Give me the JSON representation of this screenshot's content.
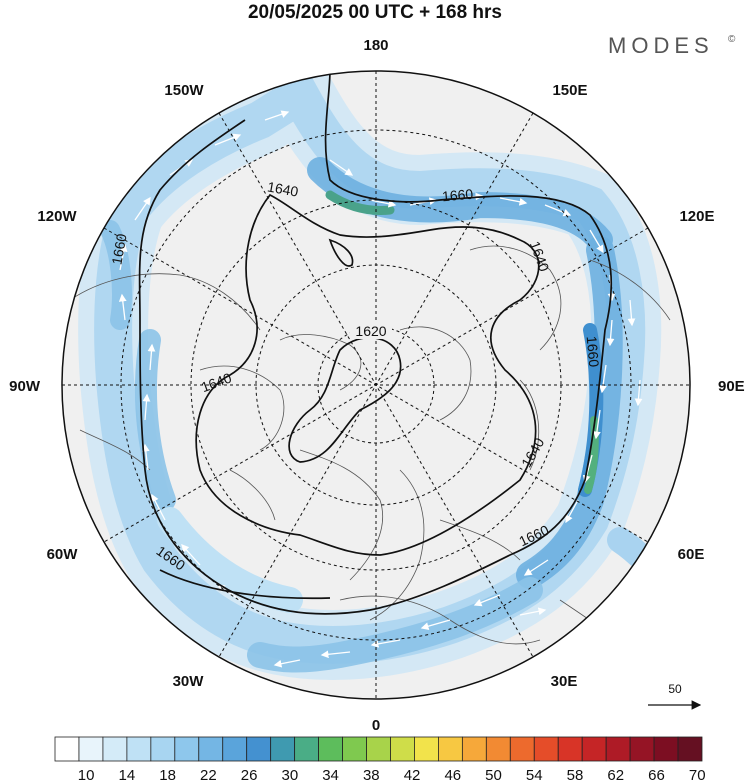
{
  "title": "20/05/2025  00 UTC  + 168 hrs",
  "brand": "MODES",
  "brand_mark": "©",
  "lon_labels": {
    "n": "180",
    "s": "0",
    "w": "90W",
    "e": "90E",
    "nw1": "150W",
    "nw2": "120W",
    "ne1": "150E",
    "ne2": "120E",
    "sw1": "60W",
    "sw2": "30W",
    "se1": "60E",
    "se2": "30E"
  },
  "contours": {
    "c1620": "1620",
    "c1640a": "1640",
    "c1640b": "1640",
    "c1640c": "1640",
    "c1640d": "1640",
    "c1660a": "1660",
    "c1660b": "1660",
    "c1660c": "1660",
    "c1660d": "1660",
    "c1660e": "1660"
  },
  "vector_ref": "50",
  "colorbar": {
    "labels": [
      "10",
      "14",
      "18",
      "22",
      "26",
      "30",
      "34",
      "38",
      "42",
      "46",
      "50",
      "54",
      "58",
      "62",
      "66",
      "70"
    ],
    "colors": [
      "#ffffff",
      "#e8f4fb",
      "#d4ebf8",
      "#bfe1f5",
      "#a8d5f1",
      "#8ec7ec",
      "#74b6e4",
      "#5aa4db",
      "#4491d0",
      "#3f9ab0",
      "#4aad86",
      "#5dbd5c",
      "#7fc94f",
      "#a8d34a",
      "#cfdd49",
      "#f2e34b",
      "#f7c842",
      "#f6a83a",
      "#f28a33",
      "#ed6a2d",
      "#e54d29",
      "#d83427",
      "#c52526",
      "#ae1b26",
      "#951425",
      "#7c0e22",
      "#651022"
    ]
  }
}
